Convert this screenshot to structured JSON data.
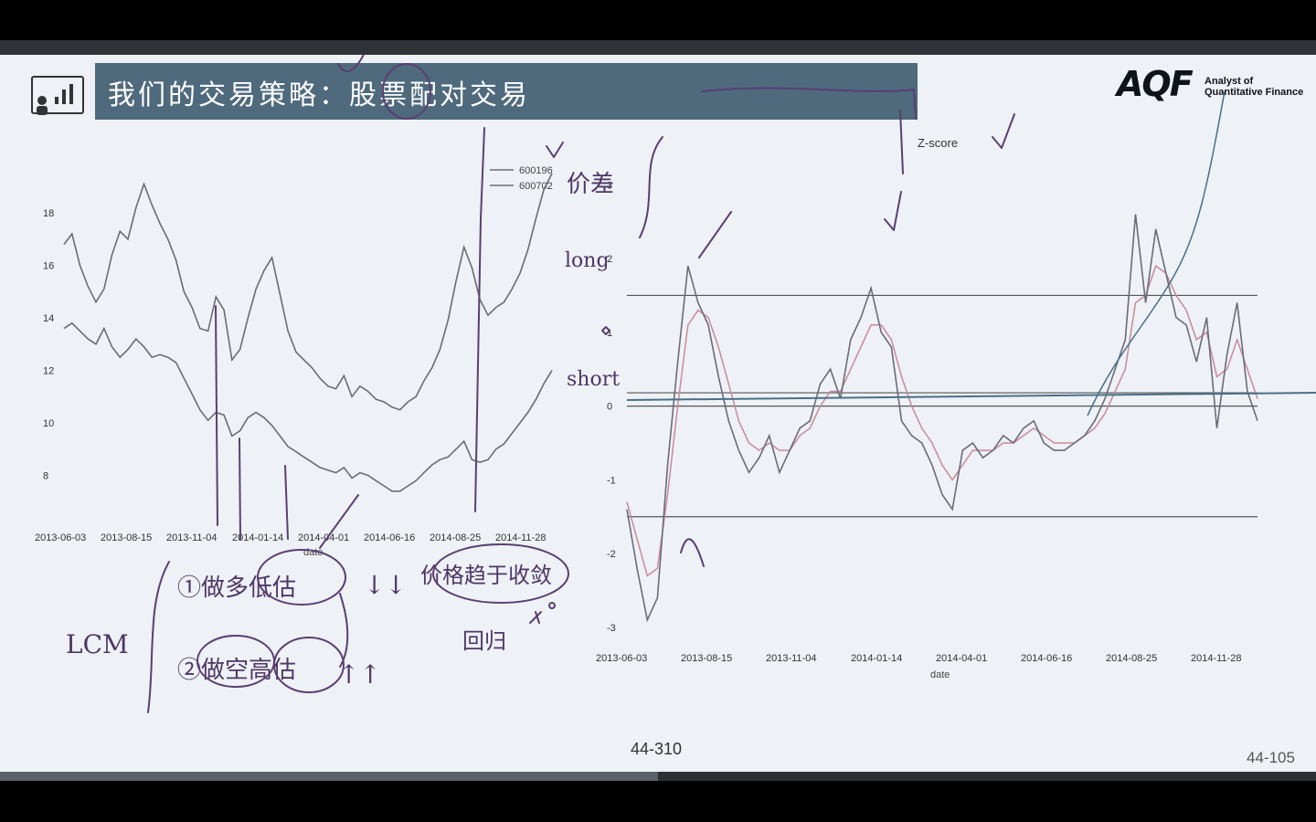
{
  "slide": {
    "title": "我们的交易策略：股票配对交易",
    "logo": {
      "mark": "AQF",
      "line1": "Analyst of",
      "line2": "Quantitative Finance"
    },
    "page_number_center": "44-310",
    "page_number_right": "44-105",
    "progress_fraction": 0.5,
    "colors": {
      "banner": "#4f6a7d",
      "slide_bg": "#eef1f5",
      "ink": "#5a3f72",
      "price_line": "#6b6b78"
    }
  },
  "annotations": {
    "long": "long",
    "short": "short",
    "spread": "价差",
    "lcm": "LCM",
    "item1_prefix": "①做多",
    "item1_word": "低估",
    "item2_prefix": "②做空",
    "item2_word": "高估",
    "converge": "价格趋于收敛",
    "regress": "回归"
  },
  "chart_data": [
    {
      "type": "line",
      "title": "",
      "xlabel": "date",
      "ylabel": "",
      "x_ticks": [
        "2013-06-03",
        "2013-08-15",
        "2013-11-04",
        "2014-01-14",
        "2014-04-01",
        "2014-06-16",
        "2014-08-25",
        "2014-11-28"
      ],
      "y_ticks": [
        8,
        10,
        12,
        14,
        16,
        18
      ],
      "ylim": [
        6.8,
        19.5
      ],
      "legend": [
        "600196",
        "600702"
      ],
      "legend_position": "top-right",
      "grid": false,
      "series": [
        {
          "name": "600196",
          "values": [
            16.8,
            17.2,
            16.0,
            15.2,
            14.6,
            15.1,
            16.4,
            17.3,
            17.0,
            18.2,
            19.1,
            18.3,
            17.6,
            17.0,
            16.2,
            15.0,
            14.4,
            13.6,
            13.5,
            14.8,
            14.3,
            12.4,
            12.8,
            14.0,
            15.1,
            15.8,
            16.3,
            14.9,
            13.5,
            12.7,
            12.4,
            12.1,
            11.7,
            11.4,
            11.3,
            11.8,
            11.0,
            11.4,
            11.2,
            10.9,
            10.8,
            10.6,
            10.5,
            10.8,
            11.0,
            11.6,
            12.1,
            12.8,
            13.9,
            15.4,
            16.7,
            15.9,
            14.7,
            14.1,
            14.4,
            14.6,
            15.1,
            15.7,
            16.6,
            17.8,
            18.9,
            19.5
          ]
        },
        {
          "name": "600702",
          "values": [
            13.6,
            13.8,
            13.5,
            13.2,
            13.0,
            13.6,
            12.9,
            12.5,
            12.8,
            13.2,
            12.9,
            12.5,
            12.6,
            12.5,
            12.3,
            11.7,
            11.1,
            10.5,
            10.1,
            10.4,
            10.3,
            9.5,
            9.7,
            10.2,
            10.4,
            10.2,
            9.9,
            9.5,
            9.1,
            8.9,
            8.7,
            8.5,
            8.3,
            8.2,
            8.1,
            8.3,
            7.9,
            8.1,
            8.0,
            7.8,
            7.6,
            7.4,
            7.4,
            7.6,
            7.8,
            8.1,
            8.4,
            8.6,
            8.7,
            9.0,
            9.3,
            8.6,
            8.5,
            8.6,
            9.0,
            9.2,
            9.6,
            10.0,
            10.4,
            10.9,
            11.5,
            12.0
          ]
        }
      ]
    },
    {
      "type": "line",
      "title": "Z-score",
      "xlabel": "date",
      "ylabel": "",
      "x_ticks": [
        "2013-06-03",
        "2013-08-15",
        "2013-11-04",
        "2014-01-14",
        "2014-04-01",
        "2014-06-16",
        "2014-08-25",
        "2014-11-28"
      ],
      "y_ticks": [
        -3,
        -2,
        -1,
        0,
        1,
        2,
        3
      ],
      "ylim": [
        -3.1,
        3.4
      ],
      "thresholds": [
        1.5,
        -1.5
      ],
      "mean_lines": [
        0.0,
        0.18
      ],
      "grid": false,
      "series": [
        {
          "name": "z-score",
          "values": [
            -1.4,
            -2.2,
            -2.9,
            -2.6,
            -0.8,
            0.6,
            1.9,
            1.4,
            1.1,
            0.4,
            -0.2,
            -0.6,
            -0.9,
            -0.7,
            -0.4,
            -0.9,
            -0.6,
            -0.3,
            -0.2,
            0.3,
            0.5,
            0.1,
            0.9,
            1.2,
            1.6,
            1.0,
            0.8,
            -0.2,
            -0.4,
            -0.5,
            -0.8,
            -1.2,
            -1.4,
            -0.6,
            -0.5,
            -0.7,
            -0.6,
            -0.4,
            -0.5,
            -0.3,
            -0.2,
            -0.5,
            -0.6,
            -0.6,
            -0.5,
            -0.4,
            -0.2,
            0.1,
            0.5,
            0.9,
            2.6,
            1.4,
            2.4,
            1.8,
            1.2,
            1.1,
            0.6,
            1.2,
            -0.3,
            0.7,
            1.4,
            0.2,
            -0.2
          ]
        },
        {
          "name": "moving-average",
          "values": [
            -1.3,
            -1.8,
            -2.3,
            -2.2,
            -1.2,
            0.0,
            1.1,
            1.3,
            1.2,
            0.8,
            0.3,
            -0.2,
            -0.5,
            -0.6,
            -0.5,
            -0.6,
            -0.6,
            -0.4,
            -0.3,
            0.0,
            0.2,
            0.2,
            0.5,
            0.8,
            1.1,
            1.1,
            0.9,
            0.4,
            0.0,
            -0.3,
            -0.5,
            -0.8,
            -1.0,
            -0.8,
            -0.6,
            -0.6,
            -0.6,
            -0.5,
            -0.5,
            -0.4,
            -0.3,
            -0.4,
            -0.5,
            -0.5,
            -0.5,
            -0.4,
            -0.3,
            -0.1,
            0.2,
            0.5,
            1.4,
            1.5,
            1.9,
            1.8,
            1.5,
            1.3,
            0.9,
            1.0,
            0.4,
            0.5,
            0.9,
            0.5,
            0.1
          ]
        }
      ]
    }
  ]
}
